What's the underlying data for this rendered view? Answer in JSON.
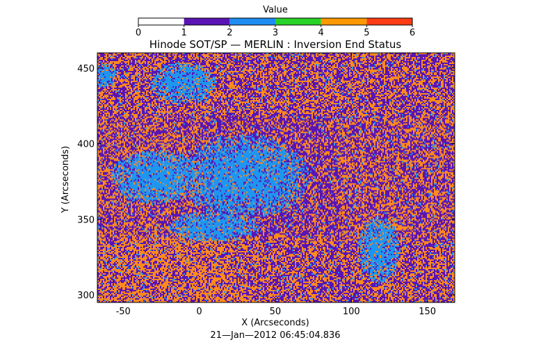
{
  "chart_data": {
    "type": "heatmap",
    "title": "Hinode SOT/SP — MERLIN : Inversion End Status",
    "xlabel": "X (Arcseconds)",
    "ylabel": "Y (Arcseconds)",
    "xlim": [
      -67,
      168
    ],
    "ylim": [
      295,
      460
    ],
    "x_ticks": [
      -50,
      0,
      50,
      100,
      150
    ],
    "y_ticks": [
      300,
      350,
      400,
      450
    ],
    "timestamp": "21—Jan—2012 06:45:04.836",
    "colorbar": {
      "label": "Value",
      "ticks": [
        0,
        1,
        2,
        3,
        4,
        5,
        6
      ],
      "bins": [
        {
          "from": 0,
          "to": 1,
          "color": "#ffffff"
        },
        {
          "from": 1,
          "to": 2,
          "color": "#5a14b4"
        },
        {
          "from": 2,
          "to": 3,
          "color": "#1e8cf0"
        },
        {
          "from": 3,
          "to": 4,
          "color": "#28d228"
        },
        {
          "from": 4,
          "to": 5,
          "color": "#ff9900"
        },
        {
          "from": 5,
          "to": 6,
          "color": "#ff3c14"
        }
      ]
    },
    "dominant_values": [
      {
        "value": 1,
        "color": "#5a14b4"
      },
      {
        "value": 4,
        "color": "#ff8a1e"
      },
      {
        "value": 2,
        "color": "#1e96f0"
      }
    ],
    "blue_regions": [
      {
        "x": -28,
        "y": 378,
        "rx": 30,
        "ry": 18
      },
      {
        "x": 30,
        "y": 378,
        "rx": 42,
        "ry": 28
      },
      {
        "x": 10,
        "y": 345,
        "rx": 30,
        "ry": 10
      },
      {
        "x": 118,
        "y": 330,
        "rx": 14,
        "ry": 22
      },
      {
        "x": -10,
        "y": 440,
        "rx": 22,
        "ry": 14
      },
      {
        "x": -62,
        "y": 445,
        "rx": 8,
        "ry": 8
      }
    ]
  }
}
